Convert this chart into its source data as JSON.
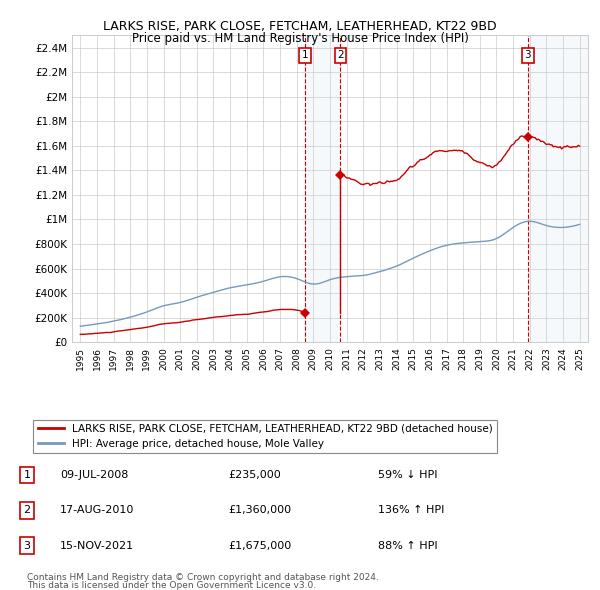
{
  "title": "LARKS RISE, PARK CLOSE, FETCHAM, LEATHERHEAD, KT22 9BD",
  "subtitle": "Price paid vs. HM Land Registry's House Price Index (HPI)",
  "background_color": "#ffffff",
  "plot_bg_color": "#ffffff",
  "grid_color": "#cccccc",
  "xlim_min": 1994.5,
  "xlim_max": 2025.5,
  "ylim_min": 0,
  "ylim_max": 2500000,
  "yticks": [
    0,
    200000,
    400000,
    600000,
    800000,
    1000000,
    1200000,
    1400000,
    1600000,
    1800000,
    2000000,
    2200000,
    2400000
  ],
  "ytick_labels": [
    "£0",
    "£200K",
    "£400K",
    "£600K",
    "£800K",
    "£1M",
    "£1.2M",
    "£1.4M",
    "£1.6M",
    "£1.8M",
    "£2M",
    "£2.2M",
    "£2.4M"
  ],
  "xtick_years": [
    1995,
    1996,
    1997,
    1998,
    1999,
    2000,
    2001,
    2002,
    2003,
    2004,
    2005,
    2006,
    2007,
    2008,
    2009,
    2010,
    2011,
    2012,
    2013,
    2014,
    2015,
    2016,
    2017,
    2018,
    2019,
    2020,
    2021,
    2022,
    2023,
    2024,
    2025
  ],
  "red_line_color": "#cc0000",
  "blue_line_color": "#7799bb",
  "sale1_x": 2008.52,
  "sale1_y": 235000,
  "sale1_label": "1",
  "sale2_x": 2010.63,
  "sale2_y": 1360000,
  "sale2_label": "2",
  "sale3_x": 2021.88,
  "sale3_y": 1675000,
  "sale3_label": "3",
  "shading_color": "#c8d8ea",
  "legend_red_label": "LARKS RISE, PARK CLOSE, FETCHAM, LEATHERHEAD, KT22 9BD (detached house)",
  "legend_blue_label": "HPI: Average price, detached house, Mole Valley",
  "table_entries": [
    {
      "num": "1",
      "date": "09-JUL-2008",
      "price": "£235,000",
      "hpi": "59% ↓ HPI"
    },
    {
      "num": "2",
      "date": "17-AUG-2010",
      "price": "£1,360,000",
      "hpi": "136% ↑ HPI"
    },
    {
      "num": "3",
      "date": "15-NOV-2021",
      "price": "£1,675,000",
      "hpi": "88% ↑ HPI"
    }
  ],
  "footer1": "Contains HM Land Registry data © Crown copyright and database right 2024.",
  "footer2": "This data is licensed under the Open Government Licence v3.0."
}
